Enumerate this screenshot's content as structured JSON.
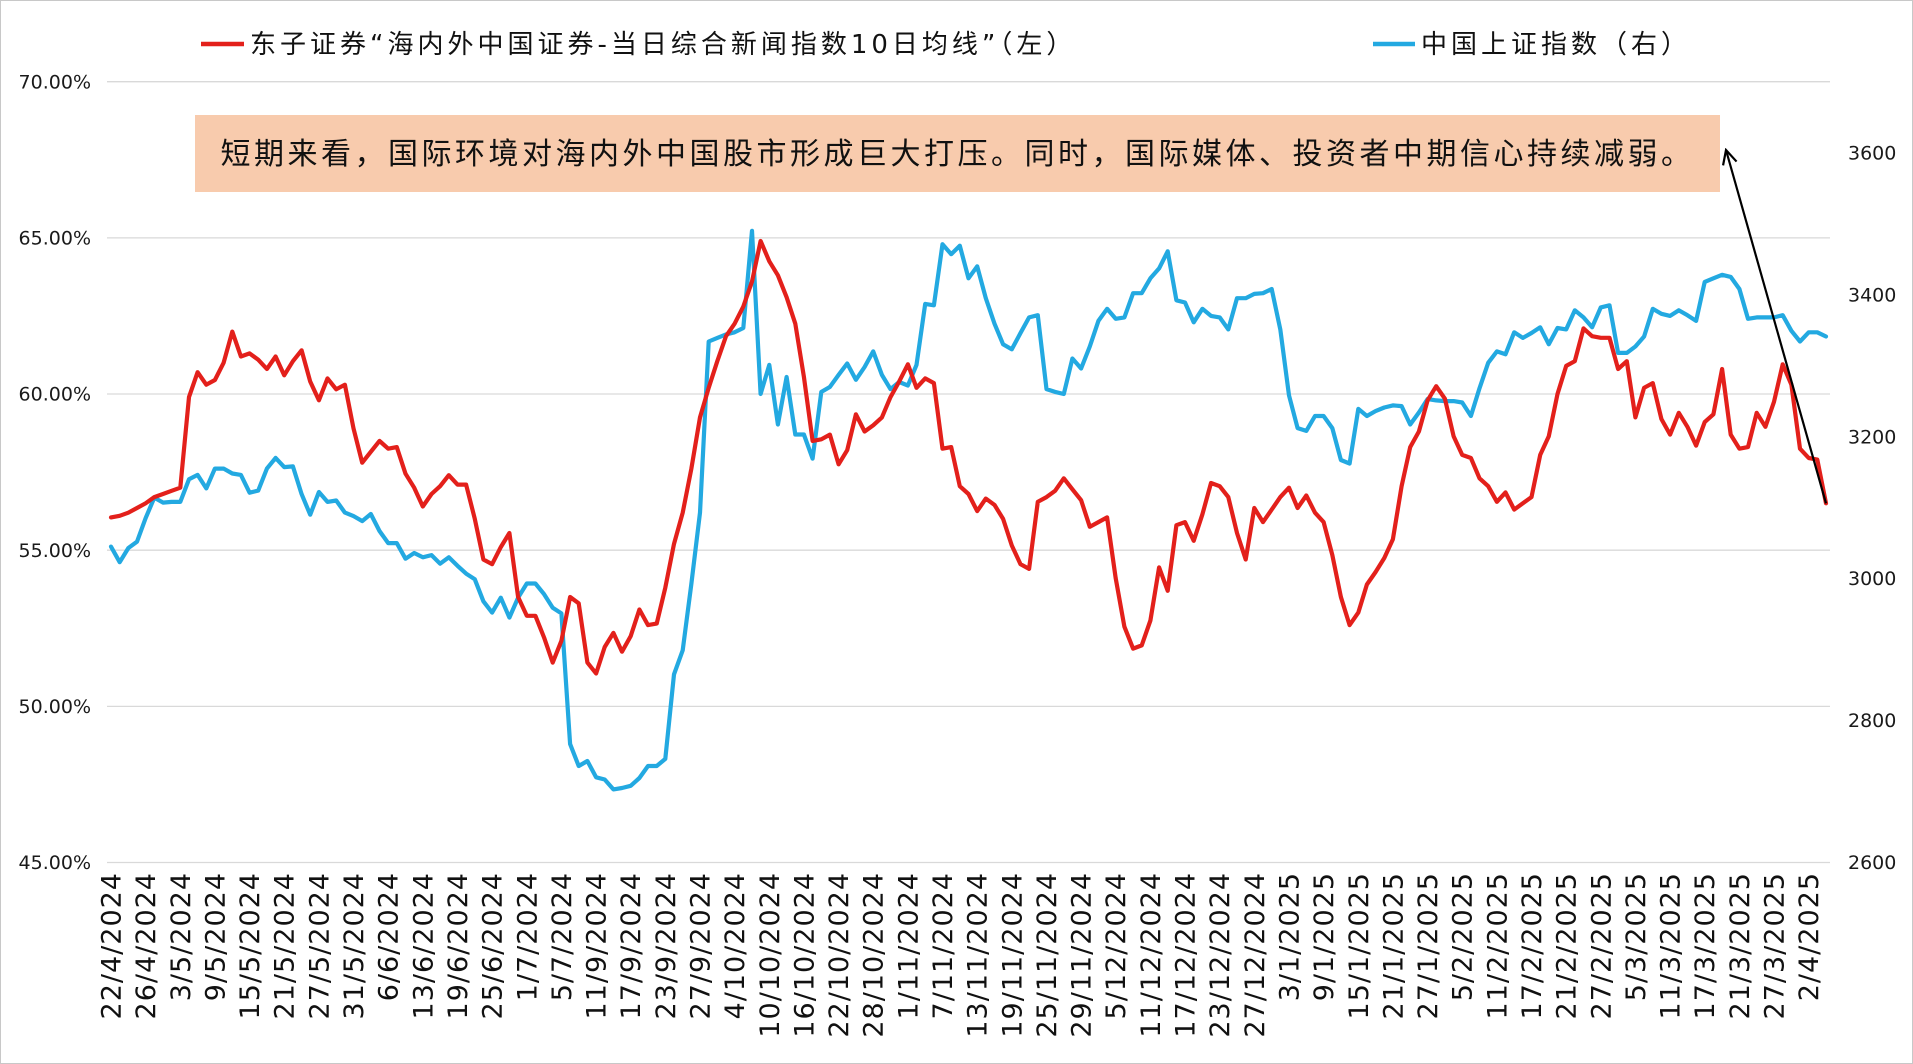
{
  "annotation": {
    "text": "短期来看，国际环境对海内外中国股市形成巨大打压。同时，国际媒体、投资者中期信心持续减弱。",
    "fill": "#F8CBAD"
  },
  "chart_data": {
    "type": "line",
    "grid": true,
    "legend_position": "top",
    "x_tick_labels": [
      "22/4/2024",
      "26/4/2024",
      "3/5/2024",
      "9/5/2024",
      "15/5/2024",
      "21/5/2024",
      "27/5/2024",
      "31/5/2024",
      "6/6/2024",
      "13/6/2024",
      "19/6/2024",
      "25/6/2024",
      "1/7/2024",
      "5/7/2024",
      "11/9/2024",
      "17/9/2024",
      "23/9/2024",
      "27/9/2024",
      "4/10/2024",
      "10/10/2024",
      "16/10/2024",
      "22/10/2024",
      "28/10/2024",
      "1/11/2024",
      "7/11/2024",
      "13/11/2024",
      "19/11/2024",
      "25/11/2024",
      "29/11/2024",
      "5/12/2024",
      "11/12/2024",
      "17/12/2024",
      "23/12/2024",
      "27/12/2024",
      "3/1/2025",
      "9/1/2025",
      "15/1/2025",
      "21/1/2025",
      "27/1/2025",
      "5/2/2025",
      "11/2/2025",
      "17/2/2025",
      "21/2/2025",
      "27/2/2025",
      "5/3/2025",
      "11/3/2025",
      "17/3/2025",
      "21/3/2025",
      "27/3/2025",
      "2/4/2025"
    ],
    "left_axis": {
      "range": [
        45,
        70
      ],
      "ticks": [
        {
          "value": 70,
          "label": "70.00%"
        },
        {
          "value": 65,
          "label": "65.00%"
        },
        {
          "value": 60,
          "label": "60.00%"
        },
        {
          "value": 55,
          "label": "55.00%"
        },
        {
          "value": 50,
          "label": "50.00%"
        },
        {
          "value": 45,
          "label": "45.00%"
        }
      ]
    },
    "right_axis": {
      "range": [
        2600,
        3700
      ],
      "ticks": [
        {
          "value": 3600,
          "label": "3600"
        },
        {
          "value": 3400,
          "label": "3400"
        },
        {
          "value": 3200,
          "label": "3200"
        },
        {
          "value": 3000,
          "label": "3000"
        },
        {
          "value": 2800,
          "label": "2800"
        },
        {
          "value": 2600,
          "label": "2600"
        }
      ]
    },
    "series": [
      {
        "name": "东子证券“海内外中国证券-当日综合新闻指数10日均线”（左）",
        "axis": "left",
        "color": "#E3201B",
        "values": [
          56.05,
          56.1,
          56.2,
          56.35,
          56.5,
          56.7,
          56.8,
          56.9,
          57.0,
          59.9,
          60.7,
          60.3,
          60.45,
          61.0,
          62.0,
          61.2,
          61.3,
          61.1,
          60.8,
          61.2,
          60.6,
          61.05,
          61.4,
          60.4,
          59.8,
          60.5,
          60.15,
          60.3,
          58.9,
          57.8,
          58.15,
          58.5,
          58.25,
          58.3,
          57.45,
          57.0,
          56.4,
          56.8,
          57.05,
          57.4,
          57.1,
          57.1,
          56.0,
          54.7,
          54.55,
          55.1,
          55.55,
          53.5,
          52.9,
          52.9,
          52.2,
          51.4,
          52.1,
          53.5,
          53.3,
          51.4,
          51.05,
          51.9,
          52.35,
          51.75,
          52.25,
          53.1,
          52.6,
          52.65,
          53.8,
          55.2,
          56.2,
          57.6,
          59.25,
          60.2,
          61.05,
          61.85,
          62.25,
          62.8,
          63.6,
          64.9,
          64.25,
          63.8,
          63.1,
          62.25,
          60.55,
          58.5,
          58.55,
          58.7,
          57.75,
          58.2,
          59.35,
          58.8,
          59.0,
          59.25,
          59.9,
          60.4,
          60.95,
          60.2,
          60.5,
          60.35,
          58.25,
          58.3,
          57.05,
          56.8,
          56.25,
          56.65,
          56.45,
          56.0,
          55.15,
          54.55,
          54.4,
          56.55,
          56.7,
          56.9,
          57.3,
          56.95,
          56.6,
          55.75,
          55.9,
          56.05,
          54.1,
          52.55,
          51.85,
          51.95,
          52.75,
          54.45,
          53.7,
          55.8,
          55.9,
          55.3,
          56.15,
          57.15,
          57.05,
          56.7,
          55.55,
          54.7,
          56.35,
          55.9,
          56.3,
          56.7,
          57.0,
          56.35,
          56.75,
          56.2,
          55.9,
          54.85,
          53.5,
          52.6,
          53.0,
          53.9,
          54.3,
          54.75,
          55.35,
          57.05,
          58.3,
          58.8,
          59.8,
          60.25,
          59.85,
          58.65,
          58.05,
          57.95,
          57.3,
          57.05,
          56.55,
          56.85,
          56.3,
          56.5,
          56.7,
          58.05,
          58.65,
          60.0,
          60.9,
          61.05,
          62.1,
          61.85,
          61.8,
          61.8,
          60.8,
          61.05,
          59.25,
          60.2,
          60.35,
          59.2,
          58.7,
          59.4,
          58.95,
          58.35,
          59.1,
          59.35,
          60.8,
          58.7,
          58.25,
          58.3,
          59.4,
          58.95,
          59.75,
          60.95,
          60.3,
          58.25,
          57.95,
          57.9,
          56.5
        ]
      },
      {
        "name": "中国上证指数（右）",
        "axis": "right",
        "color": "#23A9E1",
        "values": [
          3045,
          3023,
          3043,
          3052,
          3085,
          3114,
          3107,
          3108,
          3108,
          3140,
          3146,
          3127,
          3155,
          3155,
          3148,
          3146,
          3121,
          3124,
          3155,
          3170,
          3157,
          3158,
          3119,
          3090,
          3122,
          3108,
          3110,
          3093,
          3088,
          3081,
          3091,
          3067,
          3050,
          3050,
          3028,
          3036,
          3030,
          3033,
          3021,
          3030,
          3018,
          3007,
          2999,
          2968,
          2952,
          2973,
          2945,
          2973,
          2993,
          2993,
          2978,
          2959,
          2951,
          2767,
          2736,
          2743,
          2720,
          2717,
          2703,
          2705,
          2708,
          2719,
          2736,
          2736,
          2746,
          2865,
          2899,
          2992,
          3093,
          3334,
          3339,
          3344,
          3347,
          3353,
          3490,
          3260,
          3301,
          3217,
          3284,
          3203,
          3203,
          3169,
          3263,
          3270,
          3287,
          3303,
          3280,
          3298,
          3320,
          3287,
          3267,
          3277,
          3272,
          3301,
          3387,
          3385,
          3471,
          3457,
          3469,
          3423,
          3440,
          3395,
          3359,
          3330,
          3323,
          3346,
          3368,
          3371,
          3267,
          3263,
          3260,
          3310,
          3296,
          3327,
          3363,
          3380,
          3366,
          3368,
          3402,
          3402,
          3423,
          3437,
          3461,
          3392,
          3389,
          3361,
          3380,
          3370,
          3368,
          3351,
          3395,
          3395,
          3401,
          3402,
          3408,
          3351,
          3258,
          3212,
          3208,
          3229,
          3229,
          3212,
          3167,
          3162,
          3239,
          3229,
          3236,
          3241,
          3244,
          3243,
          3217,
          3234,
          3253,
          3251,
          3250,
          3250,
          3248,
          3229,
          3268,
          3304,
          3320,
          3316,
          3347,
          3339,
          3346,
          3354,
          3330,
          3353,
          3351,
          3378,
          3368,
          3354,
          3382,
          3385,
          3318,
          3318,
          3327,
          3341,
          3380,
          3373,
          3370,
          3378,
          3371,
          3363,
          3418,
          3423,
          3428,
          3425,
          3408,
          3366,
          3368,
          3368,
          3368,
          3371,
          3349,
          3334,
          3347,
          3347,
          3341
        ]
      }
    ]
  }
}
